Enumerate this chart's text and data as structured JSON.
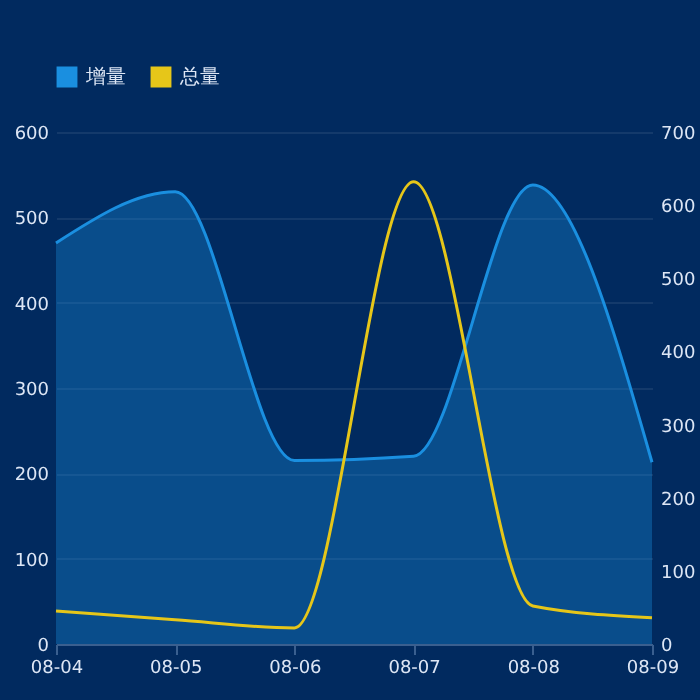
{
  "chart_data": {
    "type": "line",
    "categories": [
      "08-04",
      "08-05",
      "08-06",
      "08-07",
      "08-08",
      "08-09"
    ],
    "series": [
      {
        "name": "增量",
        "type": "area",
        "color": "#1a8fe0",
        "values": [
          470,
          530,
          215,
          220,
          538,
          213
        ]
      },
      {
        "name": "总量",
        "axis": "y2",
        "color": "#e6c619",
        "values": [
          45,
          33,
          22,
          632,
          52,
          36
        ]
      }
    ],
    "ylim": [
      0,
      600
    ],
    "yticks": [
      0,
      100,
      200,
      300,
      400,
      500,
      600
    ],
    "y2lim": [
      0,
      700
    ],
    "y2ticks": [
      0,
      100,
      200,
      300,
      400,
      500,
      600,
      700
    ],
    "grid": "y",
    "legend": "top"
  }
}
